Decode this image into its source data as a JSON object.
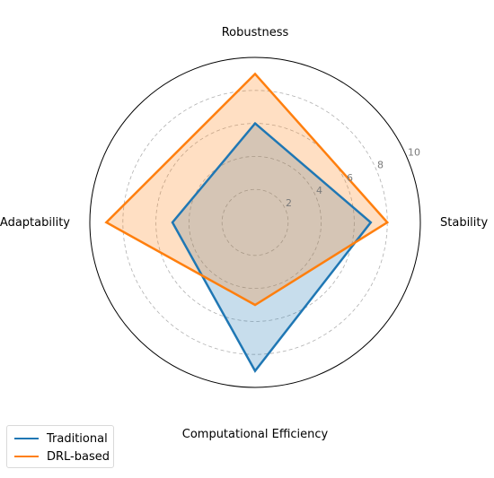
{
  "chart_data": {
    "type": "radar",
    "axes": [
      "Robustness",
      "Stability",
      "Computational Efficiency",
      "Adaptability"
    ],
    "rlim": [
      0,
      10
    ],
    "rticks": [
      2,
      4,
      6,
      8,
      10
    ],
    "rtick_labels": [
      "2",
      "4",
      "6",
      "8",
      "10"
    ],
    "grid": true,
    "legend_position": "bottom-left",
    "series": [
      {
        "name": "Traditional",
        "values": [
          6,
          7,
          9,
          5
        ],
        "color": "#1f77b4"
      },
      {
        "name": "DRL-based",
        "values": [
          9,
          8,
          5,
          9
        ],
        "color": "#ff7f0e"
      }
    ]
  }
}
